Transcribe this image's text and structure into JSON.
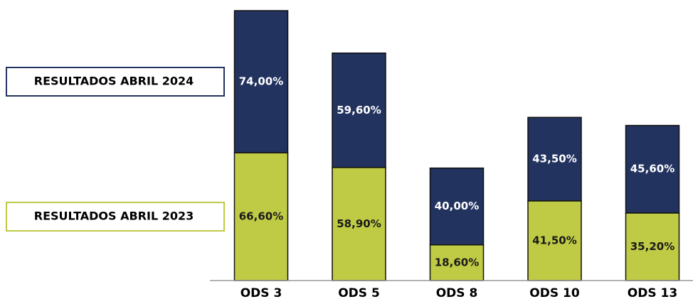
{
  "chart_data": {
    "type": "stacked_bar",
    "categories": [
      "ODS 3",
      "ODS 5",
      "ODS 8",
      "ODS 10",
      "ODS 13"
    ],
    "series": [
      {
        "name": "RESULTADOS ABRIL 2023",
        "color": "#bfca45",
        "label_color": "#1a1a1a",
        "values": [
          66.6,
          58.9,
          18.6,
          41.5,
          35.2
        ],
        "value_labels": [
          "66,60%",
          "58,90%",
          "18,60%",
          "41,50%",
          "35,20%"
        ]
      },
      {
        "name": "RESULTADOS ABRIL 2024",
        "color": "#23335f",
        "label_color": "#ffffff",
        "values": [
          74.0,
          59.6,
          40.0,
          43.5,
          45.6
        ],
        "value_labels": [
          "74,00%",
          "59,60%",
          "40,00%",
          "43,50%",
          "45,60%"
        ]
      }
    ],
    "legend": "left"
  }
}
